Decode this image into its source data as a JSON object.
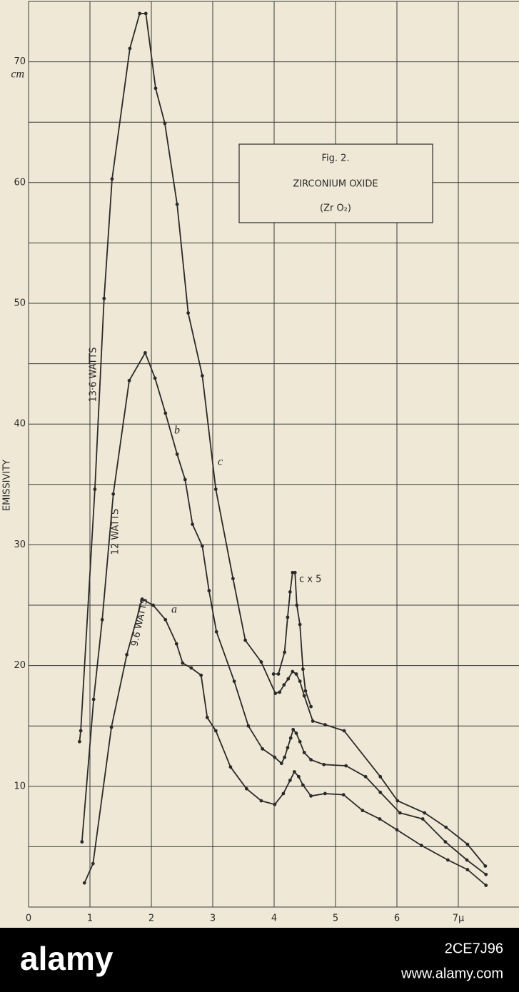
{
  "chart_data": {
    "type": "line",
    "figure_label": "Fig. 2.",
    "title": "ZIRCONIUM OXIDE",
    "subtitle": "(Zr O₂)",
    "y_label": "EMISSIVITY",
    "y_unit": "cm",
    "xlim": [
      0,
      8
    ],
    "ylim": [
      0,
      75
    ],
    "xticks": [
      0,
      1,
      2,
      3,
      4,
      5,
      6,
      {
        "value": 7,
        "label": "7μ"
      }
    ],
    "yticks": [
      10,
      20,
      30,
      40,
      50,
      60,
      70
    ],
    "y_gridlines": [
      0,
      5,
      10,
      15,
      20,
      25,
      30,
      35,
      40,
      45,
      50,
      55,
      60,
      65,
      70,
      75
    ],
    "grid": true,
    "annotations": [
      "a",
      "b",
      "c"
    ],
    "series": [
      {
        "name": "13·6 WATTS",
        "color": "#2a2a2a",
        "x": [
          0.83,
          0.85,
          1.08,
          1.23,
          1.36,
          1.65,
          1.81,
          1.91,
          2.07,
          2.22,
          2.42,
          2.6,
          2.83,
          3.05,
          3.33,
          3.53,
          3.79,
          4.02,
          4.09,
          4.16,
          4.23,
          4.3,
          4.36,
          4.42,
          4.49,
          4.63,
          4.83,
          5.14,
          5.73,
          6.01,
          6.45,
          6.8,
          7.15,
          7.44
        ],
        "values": [
          13.7,
          14.6,
          34.6,
          50.4,
          60.3,
          71.1,
          74.0,
          74.0,
          67.8,
          64.9,
          58.2,
          49.2,
          44.0,
          34.6,
          27.2,
          22.1,
          20.3,
          17.7,
          17.8,
          18.4,
          18.9,
          19.5,
          19.3,
          18.7,
          17.5,
          15.4,
          15.1,
          14.6,
          10.8,
          8.8,
          7.8,
          6.6,
          5.2,
          3.4
        ]
      },
      {
        "name": "12 WATTS",
        "color": "#2a2a2a",
        "x": [
          0.87,
          1.06,
          1.2,
          1.38,
          1.64,
          1.9,
          2.06,
          2.23,
          2.42,
          2.55,
          2.67,
          2.83,
          2.94,
          3.06,
          3.35,
          3.58,
          3.81,
          4.01,
          4.12,
          4.17,
          4.22,
          4.27,
          4.31,
          4.36,
          4.42,
          4.49,
          4.6,
          4.81,
          5.17,
          5.49,
          5.73,
          6.05,
          6.42,
          6.79,
          7.14,
          7.45
        ],
        "values": [
          5.4,
          17.2,
          23.8,
          34.2,
          43.6,
          45.9,
          43.8,
          40.9,
          37.5,
          35.4,
          31.7,
          29.9,
          26.2,
          22.8,
          18.7,
          15.0,
          13.1,
          12.4,
          11.9,
          12.4,
          13.2,
          14.0,
          14.7,
          14.4,
          13.7,
          12.8,
          12.2,
          11.8,
          11.7,
          10.8,
          9.5,
          7.8,
          7.3,
          5.4,
          3.9,
          2.7
        ]
      },
      {
        "name": "9.6 WATTS",
        "color": "#2a2a2a",
        "x": [
          0.91,
          1.05,
          1.35,
          1.6,
          1.85,
          2.03,
          2.23,
          2.41,
          2.51,
          2.65,
          2.81,
          2.91,
          3.05,
          3.29,
          3.55,
          3.79,
          4.01,
          4.15,
          4.26,
          4.33,
          4.4,
          4.47,
          4.6,
          4.83,
          5.13,
          5.44,
          5.72,
          6.0,
          6.4,
          6.83,
          7.15,
          7.45
        ],
        "values": [
          2.0,
          3.6,
          14.9,
          20.9,
          25.5,
          25.0,
          23.8,
          21.8,
          20.2,
          19.8,
          19.2,
          15.7,
          14.6,
          11.6,
          9.8,
          8.8,
          8.5,
          9.4,
          10.5,
          11.2,
          10.8,
          10.1,
          9.2,
          9.4,
          9.3,
          8.0,
          7.3,
          6.4,
          5.1,
          3.9,
          3.1,
          1.8
        ]
      },
      {
        "name": "c x 5",
        "color": "#2a2a2a",
        "x": [
          3.99,
          4.07,
          4.17,
          4.22,
          4.26,
          4.3,
          4.34,
          4.37,
          4.42,
          4.47,
          4.51,
          4.6
        ],
        "values": [
          19.3,
          19.3,
          21.1,
          24.0,
          26.1,
          27.7,
          27.7,
          25.0,
          23.4,
          19.7,
          17.9,
          16.6
        ]
      }
    ]
  },
  "watermark": {
    "brand": "alamy",
    "id": "2CE7J96",
    "url": "www.alamy.com"
  }
}
